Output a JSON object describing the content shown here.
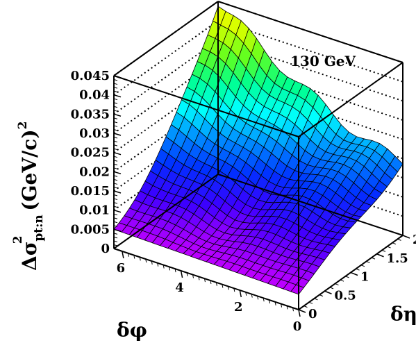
{
  "chart_data": {
    "type": "surface3d",
    "title": "",
    "annotation": "130 GeV",
    "zlabel": {
      "prefix": "Δσ",
      "sup": "2",
      "sub": "pt:n",
      "unit": " (GeV/c)",
      "unit_sup": "2"
    },
    "xlabel": "δφ",
    "ylabel": "δη",
    "xlim": [
      0,
      6.28
    ],
    "ylim": [
      0,
      2
    ],
    "zlim": [
      0,
      0.045
    ],
    "x_ticks": [
      "0",
      "2",
      "4",
      "6"
    ],
    "y_ticks": [
      "0",
      "0.5",
      "1",
      "1.5",
      "2"
    ],
    "z_ticks": [
      "0",
      "0.005",
      "0.01",
      "0.015",
      "0.02",
      "0.025",
      "0.03",
      "0.035",
      "0.04",
      "0.045"
    ],
    "grid": "dotted back walls",
    "colormap": [
      "#ff00ff",
      "#b400ff",
      "#3c00ff",
      "#0030ff",
      "#0090ff",
      "#00ffff",
      "#00ff90",
      "#60ff20",
      "#d0ff00",
      "#ffff00"
    ],
    "surface_samples": [
      {
        "delta_phi": 0,
        "delta_eta": 0,
        "value": 0.004
      },
      {
        "delta_phi": 6.28,
        "delta_eta": 0,
        "value": 0.005
      },
      {
        "delta_phi": 0,
        "delta_eta": 2,
        "value": 0.019
      },
      {
        "delta_phi": 6.28,
        "delta_eta": 2,
        "value": 0.045
      },
      {
        "delta_phi": 0,
        "delta_eta": 1.0,
        "value": 0.0125
      },
      {
        "delta_phi": 3.14,
        "delta_eta": 1.0,
        "value": 0.019
      },
      {
        "delta_phi": 6.28,
        "delta_eta": 1.0,
        "value": 0.027
      }
    ]
  }
}
